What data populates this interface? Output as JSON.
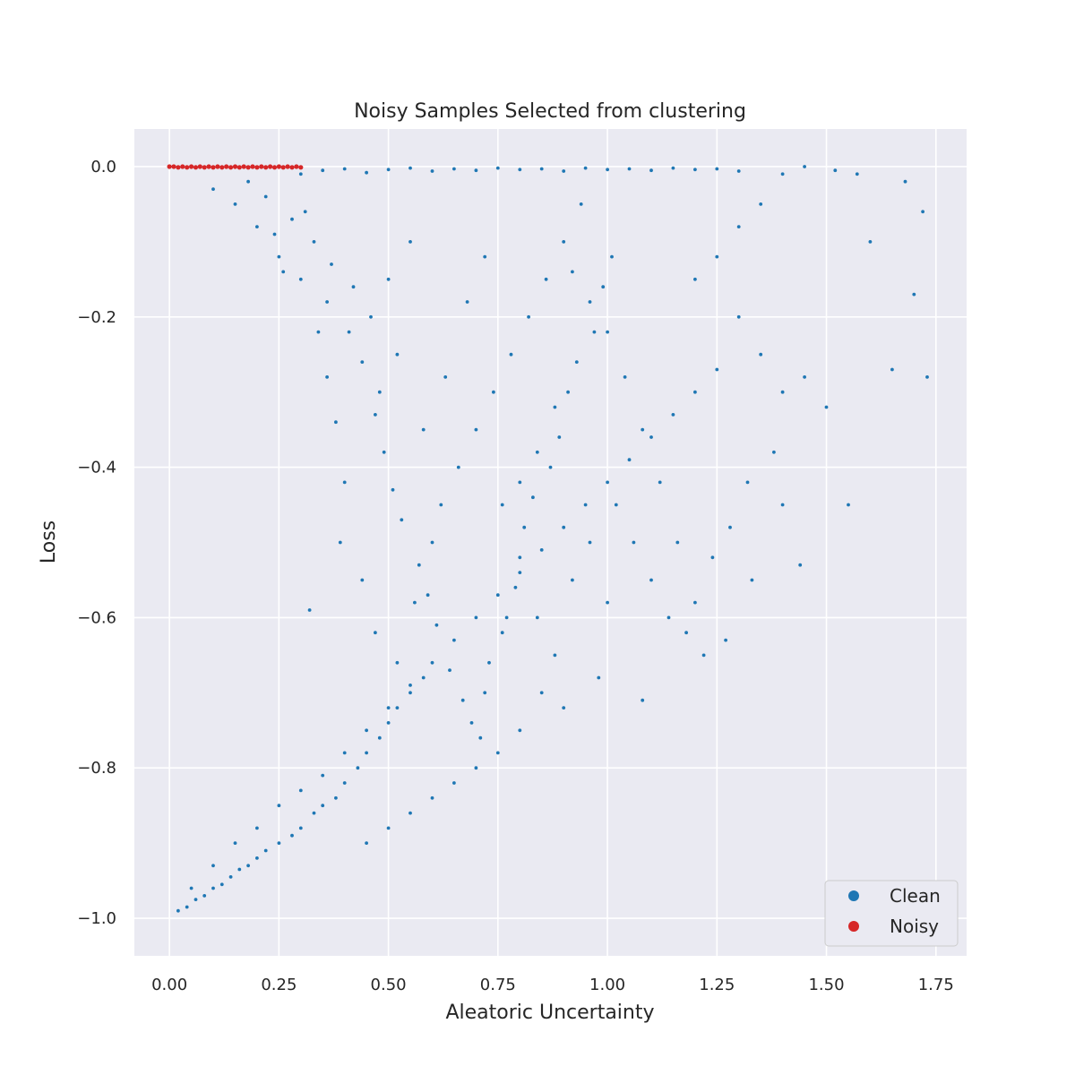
{
  "chart_data": {
    "type": "scatter",
    "title": "Noisy Samples Selected from clustering",
    "xlabel": "Aleatoric Uncertainty",
    "ylabel": "Loss",
    "xlim": [
      -0.08,
      1.82
    ],
    "ylim": [
      -1.05,
      0.05
    ],
    "xticks": [
      0.0,
      0.25,
      0.5,
      0.75,
      1.0,
      1.25,
      1.5,
      1.75
    ],
    "xtick_labels": [
      "0.00",
      "0.25",
      "0.50",
      "0.75",
      "1.00",
      "1.25",
      "1.50",
      "1.75"
    ],
    "yticks": [
      0.0,
      -0.2,
      -0.4,
      -0.6,
      -0.8,
      -1.0
    ],
    "ytick_labels": [
      "0.0",
      "−0.2",
      "−0.4",
      "−0.6",
      "−0.8",
      "−1.0"
    ],
    "grid": true,
    "legend_position": "bottom-right",
    "background_color": "#eaeaf2",
    "series": [
      {
        "name": "Clean",
        "color": "#1f77b4",
        "points": [
          [
            0.02,
            -0.99
          ],
          [
            0.04,
            -0.985
          ],
          [
            0.06,
            -0.975
          ],
          [
            0.08,
            -0.97
          ],
          [
            0.1,
            -0.96
          ],
          [
            0.12,
            -0.955
          ],
          [
            0.14,
            -0.945
          ],
          [
            0.16,
            -0.935
          ],
          [
            0.18,
            -0.93
          ],
          [
            0.2,
            -0.92
          ],
          [
            0.22,
            -0.91
          ],
          [
            0.25,
            -0.9
          ],
          [
            0.28,
            -0.89
          ],
          [
            0.3,
            -0.88
          ],
          [
            0.33,
            -0.86
          ],
          [
            0.35,
            -0.85
          ],
          [
            0.38,
            -0.84
          ],
          [
            0.4,
            -0.82
          ],
          [
            0.43,
            -0.8
          ],
          [
            0.45,
            -0.78
          ],
          [
            0.48,
            -0.76
          ],
          [
            0.5,
            -0.74
          ],
          [
            0.52,
            -0.72
          ],
          [
            0.55,
            -0.7
          ],
          [
            0.58,
            -0.68
          ],
          [
            0.05,
            -0.96
          ],
          [
            0.1,
            -0.93
          ],
          [
            0.15,
            -0.9
          ],
          [
            0.2,
            -0.88
          ],
          [
            0.25,
            -0.85
          ],
          [
            0.3,
            -0.83
          ],
          [
            0.35,
            -0.81
          ],
          [
            0.4,
            -0.78
          ],
          [
            0.45,
            -0.75
          ],
          [
            0.5,
            -0.72
          ],
          [
            0.55,
            -0.69
          ],
          [
            0.6,
            -0.66
          ],
          [
            0.65,
            -0.63
          ],
          [
            0.7,
            -0.6
          ],
          [
            0.75,
            -0.57
          ],
          [
            0.8,
            -0.54
          ],
          [
            0.85,
            -0.51
          ],
          [
            0.9,
            -0.48
          ],
          [
            0.95,
            -0.45
          ],
          [
            1.0,
            -0.42
          ],
          [
            1.05,
            -0.39
          ],
          [
            1.1,
            -0.36
          ],
          [
            1.15,
            -0.33
          ],
          [
            1.2,
            -0.3
          ],
          [
            1.25,
            -0.27
          ],
          [
            0.32,
            -0.59
          ],
          [
            0.39,
            -0.5
          ],
          [
            0.36,
            -0.28
          ],
          [
            0.34,
            -0.22
          ],
          [
            0.38,
            -0.34
          ],
          [
            0.4,
            -0.42
          ],
          [
            0.44,
            -0.55
          ],
          [
            0.47,
            -0.62
          ],
          [
            0.52,
            -0.66
          ],
          [
            0.56,
            -0.58
          ],
          [
            0.6,
            -0.5
          ],
          [
            0.62,
            -0.45
          ],
          [
            0.66,
            -0.4
          ],
          [
            0.7,
            -0.35
          ],
          [
            0.74,
            -0.3
          ],
          [
            0.78,
            -0.25
          ],
          [
            0.82,
            -0.2
          ],
          [
            0.86,
            -0.15
          ],
          [
            0.9,
            -0.1
          ],
          [
            0.94,
            -0.05
          ],
          [
            0.48,
            -0.3
          ],
          [
            0.52,
            -0.25
          ],
          [
            0.46,
            -0.2
          ],
          [
            0.5,
            -0.15
          ],
          [
            0.55,
            -0.1
          ],
          [
            0.58,
            -0.35
          ],
          [
            0.63,
            -0.28
          ],
          [
            0.68,
            -0.18
          ],
          [
            0.72,
            -0.12
          ],
          [
            0.76,
            -0.45
          ],
          [
            0.8,
            -0.52
          ],
          [
            0.84,
            -0.6
          ],
          [
            0.88,
            -0.65
          ],
          [
            0.92,
            -0.55
          ],
          [
            0.96,
            -0.5
          ],
          [
            1.0,
            -0.58
          ],
          [
            1.02,
            -0.45
          ],
          [
            1.06,
            -0.5
          ],
          [
            1.1,
            -0.55
          ],
          [
            1.14,
            -0.6
          ],
          [
            1.18,
            -0.62
          ],
          [
            1.22,
            -0.65
          ],
          [
            1.27,
            -0.63
          ],
          [
            1.08,
            -0.71
          ],
          [
            0.98,
            -0.68
          ],
          [
            0.9,
            -0.72
          ],
          [
            0.85,
            -0.7
          ],
          [
            0.8,
            -0.75
          ],
          [
            0.75,
            -0.78
          ],
          [
            0.7,
            -0.8
          ],
          [
            0.65,
            -0.82
          ],
          [
            0.6,
            -0.84
          ],
          [
            0.55,
            -0.86
          ],
          [
            0.5,
            -0.88
          ],
          [
            0.45,
            -0.9
          ],
          [
            1.3,
            -0.2
          ],
          [
            1.35,
            -0.25
          ],
          [
            1.4,
            -0.3
          ],
          [
            1.45,
            -0.28
          ],
          [
            1.5,
            -0.32
          ],
          [
            1.55,
            -0.45
          ],
          [
            1.6,
            -0.1
          ],
          [
            1.65,
            -0.27
          ],
          [
            1.7,
            -0.17
          ],
          [
            1.73,
            -0.28
          ],
          [
            1.72,
            -0.06
          ],
          [
            1.68,
            -0.02
          ],
          [
            1.57,
            -0.01
          ],
          [
            1.52,
            -0.005
          ],
          [
            1.45,
            0.0
          ],
          [
            1.4,
            -0.01
          ],
          [
            1.35,
            -0.05
          ],
          [
            1.3,
            -0.08
          ],
          [
            1.25,
            -0.12
          ],
          [
            1.2,
            -0.15
          ],
          [
            1.33,
            -0.55
          ],
          [
            1.4,
            -0.45
          ],
          [
            1.44,
            -0.53
          ],
          [
            1.38,
            -0.38
          ],
          [
            1.32,
            -0.42
          ],
          [
            1.28,
            -0.48
          ],
          [
            1.24,
            -0.52
          ],
          [
            1.2,
            -0.58
          ],
          [
            1.16,
            -0.5
          ],
          [
            1.12,
            -0.42
          ],
          [
            1.08,
            -0.35
          ],
          [
            1.04,
            -0.28
          ],
          [
            1.0,
            -0.22
          ],
          [
            0.96,
            -0.18
          ],
          [
            0.92,
            -0.14
          ],
          [
            0.88,
            -0.32
          ],
          [
            0.84,
            -0.38
          ],
          [
            0.8,
            -0.42
          ],
          [
            0.76,
            -0.62
          ],
          [
            0.72,
            -0.7
          ],
          [
            0.3,
            -0.01
          ],
          [
            0.35,
            -0.005
          ],
          [
            0.4,
            -0.003
          ],
          [
            0.45,
            -0.008
          ],
          [
            0.5,
            -0.004
          ],
          [
            0.55,
            -0.002
          ],
          [
            0.6,
            -0.006
          ],
          [
            0.65,
            -0.003
          ],
          [
            0.7,
            -0.005
          ],
          [
            0.75,
            -0.002
          ],
          [
            0.8,
            -0.004
          ],
          [
            0.85,
            -0.003
          ],
          [
            0.9,
            -0.006
          ],
          [
            0.95,
            -0.002
          ],
          [
            1.0,
            -0.004
          ],
          [
            1.05,
            -0.003
          ],
          [
            1.1,
            -0.005
          ],
          [
            1.15,
            -0.002
          ],
          [
            1.2,
            -0.004
          ],
          [
            1.25,
            -0.003
          ],
          [
            1.3,
            -0.006
          ],
          [
            0.1,
            -0.03
          ],
          [
            0.15,
            -0.05
          ],
          [
            0.2,
            -0.08
          ],
          [
            0.25,
            -0.12
          ],
          [
            0.3,
            -0.15
          ],
          [
            0.22,
            -0.04
          ],
          [
            0.28,
            -0.07
          ],
          [
            0.33,
            -0.1
          ],
          [
            0.37,
            -0.13
          ],
          [
            0.42,
            -0.16
          ],
          [
            0.18,
            -0.02
          ],
          [
            0.24,
            -0.09
          ],
          [
            0.26,
            -0.14
          ],
          [
            0.31,
            -0.06
          ],
          [
            0.36,
            -0.18
          ],
          [
            0.41,
            -0.22
          ],
          [
            0.44,
            -0.26
          ],
          [
            0.47,
            -0.33
          ],
          [
            0.49,
            -0.38
          ],
          [
            0.51,
            -0.43
          ],
          [
            0.53,
            -0.47
          ],
          [
            0.57,
            -0.53
          ],
          [
            0.59,
            -0.57
          ],
          [
            0.61,
            -0.61
          ],
          [
            0.64,
            -0.67
          ],
          [
            0.67,
            -0.71
          ],
          [
            0.69,
            -0.74
          ],
          [
            0.71,
            -0.76
          ],
          [
            0.73,
            -0.66
          ],
          [
            0.77,
            -0.6
          ],
          [
            0.79,
            -0.56
          ],
          [
            0.81,
            -0.48
          ],
          [
            0.83,
            -0.44
          ],
          [
            0.87,
            -0.4
          ],
          [
            0.89,
            -0.36
          ],
          [
            0.91,
            -0.3
          ],
          [
            0.93,
            -0.26
          ],
          [
            0.97,
            -0.22
          ],
          [
            0.99,
            -0.16
          ],
          [
            1.01,
            -0.12
          ]
        ]
      },
      {
        "name": "Noisy",
        "color": "#d62728",
        "points": [
          [
            0.0,
            0.0
          ],
          [
            0.01,
            0.0
          ],
          [
            0.02,
            -0.001
          ],
          [
            0.03,
            0.0
          ],
          [
            0.04,
            -0.001
          ],
          [
            0.05,
            0.0
          ],
          [
            0.06,
            -0.001
          ],
          [
            0.07,
            0.0
          ],
          [
            0.08,
            -0.001
          ],
          [
            0.09,
            0.0
          ],
          [
            0.1,
            -0.001
          ],
          [
            0.11,
            0.0
          ],
          [
            0.12,
            -0.001
          ],
          [
            0.13,
            0.0
          ],
          [
            0.14,
            -0.001
          ],
          [
            0.15,
            0.0
          ],
          [
            0.16,
            -0.001
          ],
          [
            0.17,
            0.0
          ],
          [
            0.18,
            -0.001
          ],
          [
            0.19,
            0.0
          ],
          [
            0.2,
            -0.001
          ],
          [
            0.21,
            0.0
          ],
          [
            0.22,
            -0.001
          ],
          [
            0.23,
            0.0
          ],
          [
            0.24,
            -0.001
          ],
          [
            0.25,
            0.0
          ],
          [
            0.26,
            -0.001
          ],
          [
            0.27,
            0.0
          ],
          [
            0.28,
            -0.001
          ],
          [
            0.29,
            0.0
          ],
          [
            0.3,
            -0.001
          ]
        ]
      }
    ]
  }
}
